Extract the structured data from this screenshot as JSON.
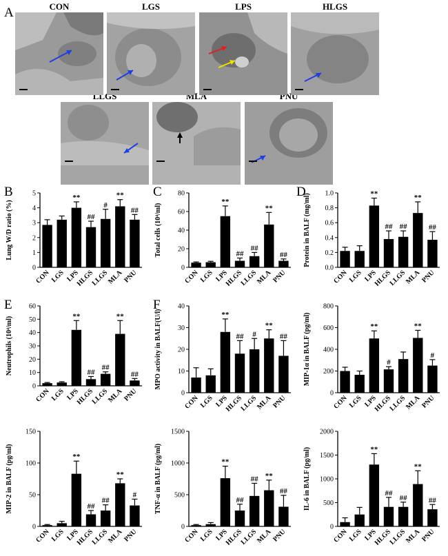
{
  "panels": {
    "a": "A",
    "b": "B",
    "c": "C",
    "d": "D",
    "e": "E",
    "f": "F"
  },
  "micrographs": [
    {
      "label": "CON"
    },
    {
      "label": "LGS"
    },
    {
      "label": "LPS"
    },
    {
      "label": "HLGS"
    },
    {
      "label": "LLGS"
    },
    {
      "label": "MLA"
    },
    {
      "label": "PNU"
    }
  ],
  "colors": {
    "bar": "#000000",
    "arrow_blue": "#1f3fe0",
    "arrow_red": "#e0201f",
    "arrow_yellow": "#f0e000",
    "arrow_black": "#000000"
  },
  "chart_data": [
    {
      "type": "bar",
      "id": "B",
      "ylabel": "Lung W/D ratio (%)",
      "categories": [
        "CON",
        "LGS",
        "LPS",
        "HLGS",
        "LLGS",
        "MLA",
        "PNU"
      ],
      "values": [
        2.85,
        3.2,
        4.0,
        2.7,
        3.25,
        4.1,
        3.2
      ],
      "errors": [
        0.35,
        0.25,
        0.4,
        0.4,
        0.65,
        0.45,
        0.35
      ],
      "annotations": [
        "",
        "",
        "**",
        "##",
        "#",
        "**",
        "##"
      ],
      "ylim": [
        0,
        5
      ],
      "yticks": [
        0,
        1,
        2,
        3,
        4,
        5
      ],
      "yticklabels": [
        "0",
        "1",
        "2",
        "3",
        "4",
        "5"
      ]
    },
    {
      "type": "bar",
      "id": "C",
      "ylabel": "Total cells (10⁴/ml)",
      "categories": [
        "CON",
        "LGS",
        "LPS",
        "HLGS",
        "LLGS",
        "MLA",
        "PNU"
      ],
      "values": [
        5,
        5.5,
        55,
        7,
        12,
        46,
        7
      ],
      "errors": [
        0.8,
        1,
        11,
        3,
        4,
        13,
        2
      ],
      "annotations": [
        "",
        "",
        "**",
        "##",
        "##",
        "**",
        "##"
      ],
      "ylim": [
        0,
        80
      ],
      "yticks": [
        0,
        20,
        40,
        60,
        80
      ],
      "yticklabels": [
        "0",
        "20",
        "40",
        "60",
        "80"
      ]
    },
    {
      "type": "bar",
      "id": "D",
      "ylabel": "Protein in BALF (mg/ml)",
      "categories": [
        "CON",
        "LGS",
        "LPS",
        "HLGS",
        "LLGS",
        "MLA",
        "PNU"
      ],
      "values": [
        0.22,
        0.22,
        0.83,
        0.38,
        0.41,
        0.73,
        0.37
      ],
      "errors": [
        0.05,
        0.07,
        0.1,
        0.11,
        0.08,
        0.15,
        0.11
      ],
      "annotations": [
        "",
        "",
        "**",
        "##",
        "##",
        "**",
        "##"
      ],
      "ylim": [
        0,
        1.0
      ],
      "yticks": [
        0,
        0.2,
        0.4,
        0.6,
        0.8,
        1.0
      ],
      "yticklabels": [
        "0.0",
        "0.2",
        "0.4",
        "0.6",
        "0.8",
        "1.0"
      ]
    },
    {
      "type": "bar",
      "id": "E",
      "ylabel": "Neutrophils (10⁴/ml)",
      "categories": [
        "CON",
        "LGS",
        "LPS",
        "HLGS",
        "LLGS",
        "MLA",
        "PNU"
      ],
      "values": [
        2,
        2.5,
        42,
        5,
        9,
        39,
        4
      ],
      "errors": [
        0.5,
        0.6,
        7,
        2,
        1.5,
        10,
        1.5
      ],
      "annotations": [
        "",
        "",
        "**",
        "##",
        "##",
        "**",
        "##"
      ],
      "ylim": [
        0,
        60
      ],
      "yticks": [
        0,
        10,
        20,
        30,
        40,
        50,
        60
      ],
      "yticklabels": [
        "0",
        "10",
        "20",
        "30",
        "40",
        "50",
        "60"
      ]
    },
    {
      "type": "bar",
      "id": "F",
      "ylabel": "MPO activity in BALF(U/l)",
      "categories": [
        "CON",
        "LGS",
        "LPS",
        "HLGS",
        "LLGS",
        "MLA",
        "PNU"
      ],
      "values": [
        7,
        8,
        28,
        18,
        20,
        25,
        17
      ],
      "errors": [
        4.5,
        3,
        6,
        6,
        5,
        4,
        7
      ],
      "annotations": [
        "",
        "",
        "**",
        "##",
        "#",
        "**",
        "##"
      ],
      "ylim": [
        0,
        40
      ],
      "yticks": [
        0,
        10,
        20,
        30,
        40
      ],
      "yticklabels": [
        "0",
        "10",
        "20",
        "30",
        "40"
      ]
    },
    {
      "type": "bar",
      "id": "mip1a",
      "ylabel": "MIP-1α in BALF (pg/ml)",
      "categories": [
        "CON",
        "LGS",
        "LPS",
        "HLGS",
        "LLGS",
        "MLA",
        "PNU"
      ],
      "values": [
        200,
        165,
        500,
        215,
        310,
        505,
        250
      ],
      "errors": [
        35,
        35,
        70,
        25,
        65,
        70,
        55
      ],
      "annotations": [
        "",
        "",
        "**",
        "#",
        "",
        "**",
        "#"
      ],
      "ylim": [
        0,
        800
      ],
      "yticks": [
        0,
        200,
        400,
        600,
        800
      ],
      "yticklabels": [
        "0",
        "200",
        "400",
        "600",
        "800"
      ]
    },
    {
      "type": "bar",
      "id": "mip2",
      "ylabel": "MIP-2 in BALF (pg/ml)",
      "categories": [
        "CON",
        "LGS",
        "LPS",
        "HLGS",
        "LLGS",
        "MLA",
        "PNU"
      ],
      "values": [
        2,
        5,
        83,
        19,
        25,
        68,
        33
      ],
      "errors": [
        1,
        3,
        20,
        6,
        9,
        7,
        10
      ],
      "annotations": [
        "",
        "",
        "**",
        "##",
        "##",
        "**",
        "#"
      ],
      "ylim": [
        0,
        150
      ],
      "yticks": [
        0,
        50,
        100,
        150
      ],
      "yticklabels": [
        "0",
        "50",
        "100",
        "150"
      ]
    },
    {
      "type": "bar",
      "id": "tnf",
      "ylabel": "TNF-α in BALF (pg/ml)",
      "categories": [
        "CON",
        "LGS",
        "LPS",
        "HLGS",
        "LLGS",
        "MLA",
        "PNU"
      ],
      "values": [
        20,
        35,
        760,
        250,
        480,
        570,
        310
      ],
      "errors": [
        10,
        25,
        190,
        100,
        200,
        160,
        180
      ],
      "annotations": [
        "",
        "",
        "**",
        "##",
        "##",
        "**",
        "##"
      ],
      "ylim": [
        0,
        1500
      ],
      "yticks": [
        0,
        500,
        1000,
        1500
      ],
      "yticklabels": [
        "0",
        "500",
        "1000",
        "1500"
      ]
    },
    {
      "type": "bar",
      "id": "il6",
      "ylabel": "IL-6 in BALF (pg/ml)",
      "categories": [
        "CON",
        "LGS",
        "LPS",
        "HLGS",
        "LLGS",
        "MLA",
        "PNU"
      ],
      "values": [
        90,
        250,
        1300,
        410,
        410,
        890,
        360
      ],
      "errors": [
        90,
        150,
        230,
        200,
        100,
        280,
        100
      ],
      "annotations": [
        "",
        "",
        "**",
        "##",
        "##",
        "**",
        "##"
      ],
      "ylim": [
        0,
        2000
      ],
      "yticks": [
        0,
        500,
        1000,
        1500,
        2000
      ],
      "yticklabels": [
        "0",
        "500",
        "1000",
        "1500",
        "2000"
      ]
    }
  ]
}
